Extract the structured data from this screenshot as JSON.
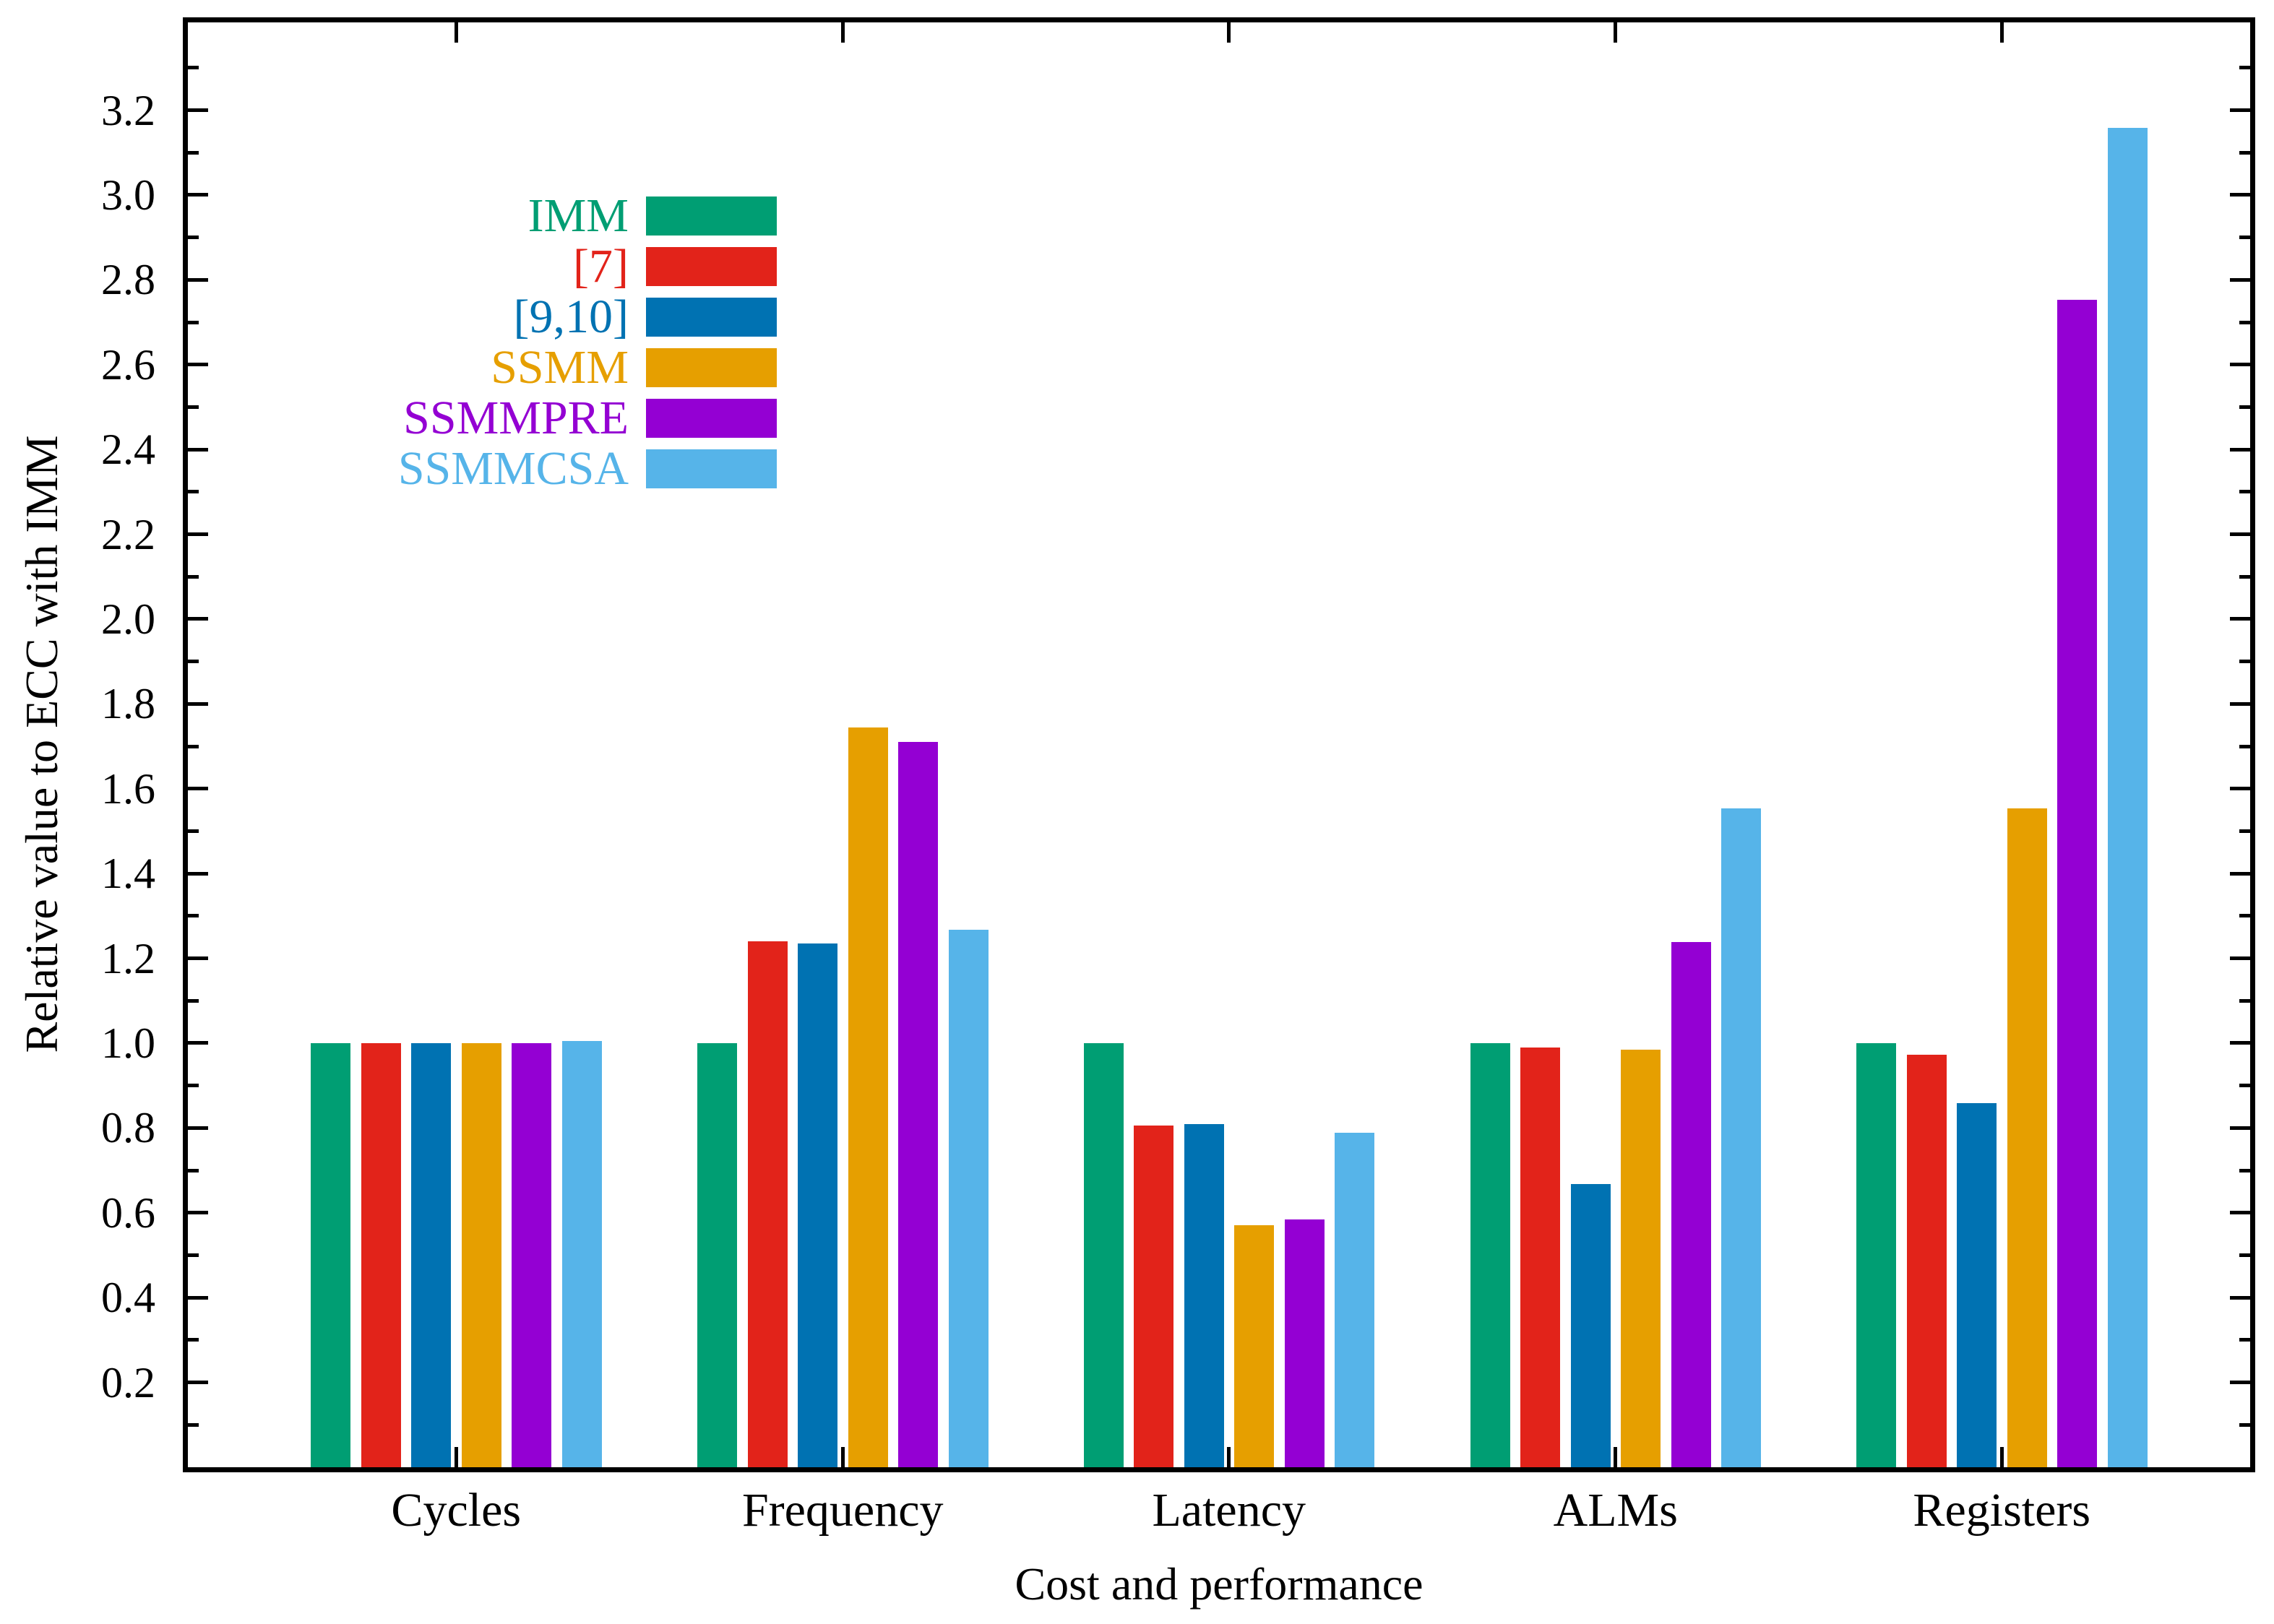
{
  "chart_data": {
    "type": "bar",
    "title": "",
    "xlabel": "Cost and performance",
    "ylabel": "Relative value to ECC with IMM",
    "categories": [
      "Cycles",
      "Frequency",
      "Latency",
      "ALMs",
      "Registers"
    ],
    "series": [
      {
        "name": "IMM",
        "color": "#009E73",
        "values": [
          1.0,
          1.0,
          1.0,
          1.0,
          1.0
        ]
      },
      {
        "name": "[7]",
        "color": "#E2231A",
        "values": [
          1.0,
          1.24,
          0.805,
          0.99,
          0.973
        ]
      },
      {
        "name": "[9,10]",
        "color": "#0072B2",
        "values": [
          1.0,
          1.235,
          0.81,
          0.668,
          0.858
        ]
      },
      {
        "name": "SSMM",
        "color": "#E69F00",
        "values": [
          1.0,
          1.744,
          0.571,
          0.984,
          1.553
        ]
      },
      {
        "name": "SSMMPRE",
        "color": "#9400D3",
        "values": [
          1.0,
          1.71,
          0.585,
          1.238,
          2.753
        ]
      },
      {
        "name": "SSMMCSA",
        "color": "#56B4E9",
        "values": [
          1.005,
          1.268,
          0.788,
          1.554,
          3.159
        ]
      }
    ],
    "ylim": [
      0,
      3.407
    ],
    "yticks_major": [
      0.2,
      0.4,
      0.6,
      0.8,
      1.0,
      1.2,
      1.4,
      1.6,
      1.8,
      2.0,
      2.2,
      2.4,
      2.6,
      2.8,
      3.0,
      3.2
    ],
    "ytick_labels": [
      "0.2",
      "0.4",
      "0.6",
      "0.8",
      "1.0",
      "1.2",
      "1.4",
      "1.6",
      "1.8",
      "2.0",
      "2.2",
      "2.4",
      "2.6",
      "2.8",
      "3.0",
      "3.2"
    ],
    "yticks_minor": [
      0.1,
      0.3,
      0.5,
      0.7,
      0.9,
      1.1,
      1.3,
      1.5,
      1.7,
      1.9,
      2.1,
      2.3,
      2.5,
      2.7,
      2.9,
      3.1,
      3.3
    ],
    "grid": false,
    "legend_position": "upper-left-inside",
    "axis_color": "#000000",
    "background_color": "#ffffff"
  }
}
